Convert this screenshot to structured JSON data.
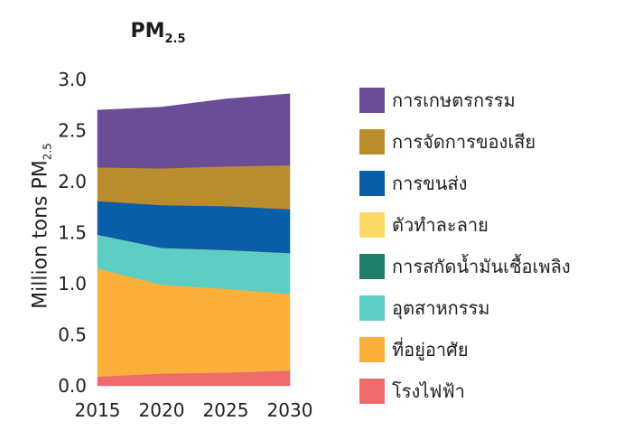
{
  "chart_data": {
    "type": "area",
    "stacked": true,
    "title": "PM",
    "title_sub": "2.5",
    "ylabel": "Million tons PM",
    "ylabel_sub": "2.5",
    "x": [
      2015,
      2020,
      2025,
      2030
    ],
    "xticks": [
      "2015",
      "2020",
      "2025",
      "2030"
    ],
    "ylim": [
      0,
      3.0
    ],
    "yticks": [
      "0.0",
      "0.5",
      "1.0",
      "1.5",
      "2.0",
      "2.5",
      "3.0"
    ],
    "grid": false,
    "legend_position": "right",
    "series": [
      {
        "name": "โรงไฟฟ้า",
        "color": "#ef6b6b",
        "values": [
          0.09,
          0.12,
          0.13,
          0.15
        ]
      },
      {
        "name": "ที่อยู่อาศัย",
        "color": "#fbb03b",
        "values": [
          1.06,
          0.87,
          0.82,
          0.75
        ]
      },
      {
        "name": "อุตสาหกรรม",
        "color": "#5ecec4",
        "values": [
          0.33,
          0.36,
          0.38,
          0.4
        ]
      },
      {
        "name": "การสกัดน้ำมันเชื้อเพลิง",
        "color": "#1f7f6a",
        "values": [
          0.0,
          0.0,
          0.0,
          0.0
        ]
      },
      {
        "name": "ตัวทำละลาย",
        "color": "#ffd966",
        "values": [
          0.0,
          0.0,
          0.0,
          0.0
        ]
      },
      {
        "name": "การขนส่ง",
        "color": "#0a5ea8",
        "values": [
          0.33,
          0.42,
          0.43,
          0.43
        ]
      },
      {
        "name": "การจัดการของเสีย",
        "color": "#b98d2e",
        "values": [
          0.33,
          0.36,
          0.39,
          0.43
        ]
      },
      {
        "name": "การเกษตรกรรม",
        "color": "#6a4d97",
        "values": [
          0.56,
          0.6,
          0.66,
          0.7
        ]
      }
    ],
    "legend_order": [
      "การเกษตรกรรม",
      "การจัดการของเสีย",
      "การขนส่ง",
      "ตัวทำละลาย",
      "การสกัดน้ำมันเชื้อเพลิง",
      "อุตสาหกรรม",
      "ที่อยู่อาศัย",
      "โรงไฟฟ้า"
    ]
  }
}
